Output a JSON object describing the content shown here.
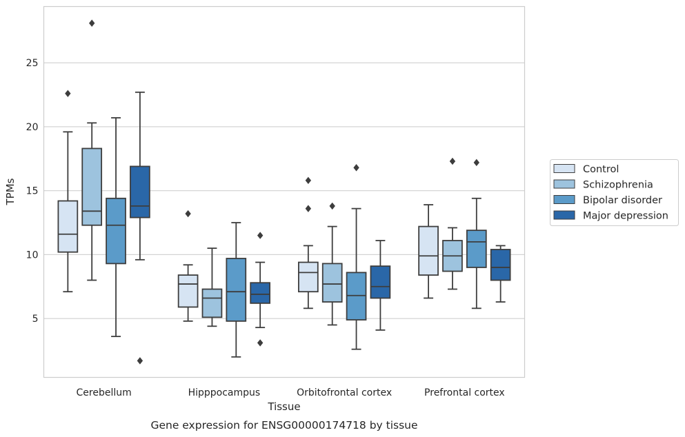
{
  "chart_data": {
    "type": "boxplot",
    "title": "",
    "caption": "Gene expression for ENSG00000174718 by tissue",
    "xlabel": "Tissue",
    "ylabel": "TPMs",
    "ylim": [
      0.4,
      29.4
    ],
    "yticks": [
      5,
      10,
      15,
      20,
      25
    ],
    "categories": [
      "Cerebellum",
      "Hipppocampus",
      "Orbitofrontal cortex",
      "Prefrontal cortex"
    ],
    "grid": "horizontal",
    "legend_position": "right",
    "series": [
      {
        "name": "Control",
        "color": "#d6e4f3",
        "boxes": [
          {
            "whislo": 7.1,
            "q1": 10.2,
            "med": 11.6,
            "q3": 14.2,
            "whishi": 19.6,
            "fliers": [
              22.6
            ]
          },
          {
            "whislo": 4.8,
            "q1": 5.9,
            "med": 7.7,
            "q3": 8.4,
            "whishi": 9.2,
            "fliers": [
              13.2
            ]
          },
          {
            "whislo": 5.8,
            "q1": 7.1,
            "med": 8.6,
            "q3": 9.4,
            "whishi": 10.7,
            "fliers": [
              13.6,
              15.8
            ]
          },
          {
            "whislo": 6.6,
            "q1": 8.4,
            "med": 9.9,
            "q3": 12.2,
            "whishi": 13.9,
            "fliers": []
          }
        ]
      },
      {
        "name": "Schizophrenia",
        "color": "#9dc3de",
        "boxes": [
          {
            "whislo": 8.0,
            "q1": 12.3,
            "med": 13.4,
            "q3": 18.3,
            "whishi": 20.3,
            "fliers": [
              28.1
            ]
          },
          {
            "whislo": 4.4,
            "q1": 5.1,
            "med": 6.6,
            "q3": 7.3,
            "whishi": 10.5,
            "fliers": []
          },
          {
            "whislo": 4.5,
            "q1": 6.3,
            "med": 7.7,
            "q3": 9.3,
            "whishi": 12.2,
            "fliers": [
              13.8
            ]
          },
          {
            "whislo": 7.3,
            "q1": 8.7,
            "med": 9.9,
            "q3": 11.1,
            "whishi": 12.1,
            "fliers": [
              17.3
            ]
          }
        ]
      },
      {
        "name": "Bipolar disorder",
        "color": "#5b9bc9",
        "boxes": [
          {
            "whislo": 3.6,
            "q1": 9.3,
            "med": 12.3,
            "q3": 14.4,
            "whishi": 20.7,
            "fliers": []
          },
          {
            "whislo": 2.0,
            "q1": 4.8,
            "med": 7.1,
            "q3": 9.7,
            "whishi": 12.5,
            "fliers": []
          },
          {
            "whislo": 2.6,
            "q1": 4.9,
            "med": 6.8,
            "q3": 8.6,
            "whishi": 13.6,
            "fliers": [
              16.8
            ]
          },
          {
            "whislo": 5.8,
            "q1": 9.0,
            "med": 11.0,
            "q3": 11.9,
            "whishi": 14.4,
            "fliers": [
              17.2
            ]
          }
        ]
      },
      {
        "name": "Major depression",
        "color": "#2a67a8",
        "boxes": [
          {
            "whislo": 9.6,
            "q1": 12.9,
            "med": 13.8,
            "q3": 16.9,
            "whishi": 22.7,
            "fliers": [
              1.7
            ]
          },
          {
            "whislo": 4.3,
            "q1": 6.2,
            "med": 6.9,
            "q3": 7.8,
            "whishi": 9.4,
            "fliers": [
              11.5,
              3.1
            ]
          },
          {
            "whislo": 4.1,
            "q1": 6.6,
            "med": 7.5,
            "q3": 9.1,
            "whishi": 11.1,
            "fliers": []
          },
          {
            "whislo": 6.3,
            "q1": 8.0,
            "med": 9.0,
            "q3": 10.4,
            "whishi": 10.7,
            "fliers": []
          }
        ]
      }
    ]
  }
}
